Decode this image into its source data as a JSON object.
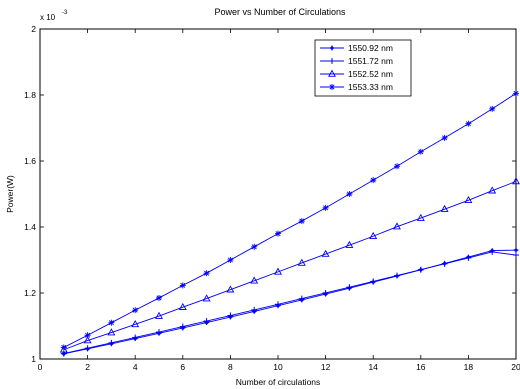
{
  "chart_data": {
    "type": "line",
    "title": "Power vs Number of Circulations",
    "xlabel": "Number of circulations",
    "ylabel": "Power(W)",
    "y_exponent_base": "x 10",
    "y_exponent_power": "-3",
    "xlim": [
      0,
      20
    ],
    "ylim": [
      1,
      2
    ],
    "xticks": [
      "0",
      "2",
      "4",
      "6",
      "8",
      "10",
      "12",
      "14",
      "16",
      "18",
      "20"
    ],
    "yticks": [
      "1",
      "1.2",
      "1.4",
      "1.6",
      "1.8",
      "2"
    ],
    "grid": false,
    "legend_position": "top-right",
    "line_color": "#0000ff",
    "x": [
      1,
      2,
      3,
      4,
      5,
      6,
      7,
      8,
      9,
      10,
      11,
      12,
      13,
      14,
      15,
      16,
      17,
      18,
      19,
      20
    ],
    "series": [
      {
        "name": "1550.92 nm",
        "marker": "dot",
        "values": [
          1.0156,
          1.0307,
          1.0461,
          1.0618,
          1.0777,
          1.094,
          1.1104,
          1.1272,
          1.1441,
          1.1614,
          1.1789,
          1.1966,
          1.2147,
          1.233,
          1.2515,
          1.2704,
          1.2895,
          1.3089,
          1.3285,
          1.33
        ]
      },
      {
        "name": "1551.72 nm",
        "marker": "plus",
        "values": [
          1.0165,
          1.0327,
          1.0489,
          1.0653,
          1.0817,
          1.0983,
          1.115,
          1.1318,
          1.1488,
          1.1658,
          1.183,
          1.2003,
          1.2177,
          1.2352,
          1.2528,
          1.2706,
          1.2884,
          1.3064,
          1.3245,
          1.315
        ]
      },
      {
        "name": "1552.52 nm",
        "marker": "triangle",
        "values": [
          1.028,
          1.056,
          1.08,
          1.105,
          1.13,
          1.157,
          1.183,
          1.21,
          1.237,
          1.264,
          1.291,
          1.318,
          1.345,
          1.372,
          1.401,
          1.427,
          1.454,
          1.481,
          1.51,
          1.538
        ]
      },
      {
        "name": "1553.33 nm",
        "marker": "star",
        "values": [
          1.035,
          1.072,
          1.11,
          1.148,
          1.185,
          1.223,
          1.26,
          1.3,
          1.34,
          1.38,
          1.418,
          1.458,
          1.5,
          1.542,
          1.584,
          1.628,
          1.67,
          1.713,
          1.758,
          1.805
        ]
      }
    ]
  }
}
